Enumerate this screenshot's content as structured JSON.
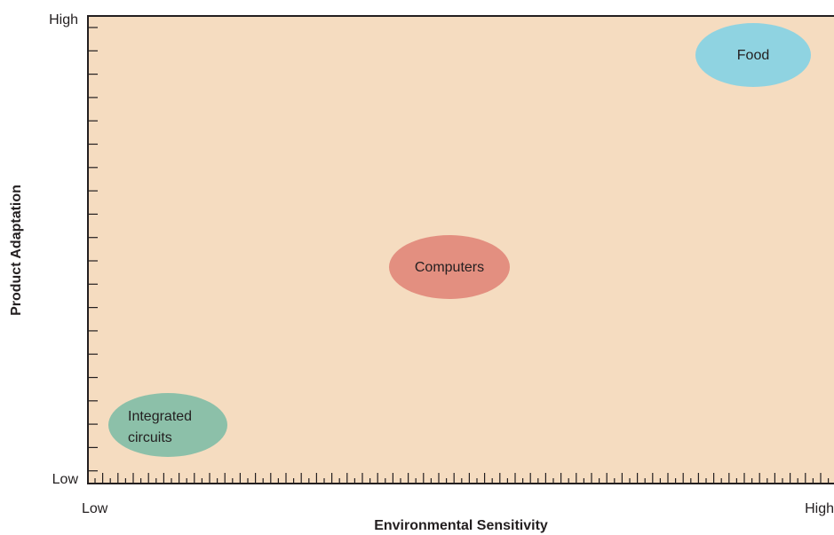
{
  "axes": {
    "y_title": "Product Adaptation",
    "y_high": "High",
    "y_low": "Low",
    "x_title": "Environmental Sensitivity",
    "x_low": "Low",
    "x_high": "High"
  },
  "nodes": [
    {
      "lines": [
        "Food"
      ]
    },
    {
      "lines": [
        "Computers"
      ]
    },
    {
      "lines": [
        "Integrated",
        "circuits"
      ]
    }
  ]
}
